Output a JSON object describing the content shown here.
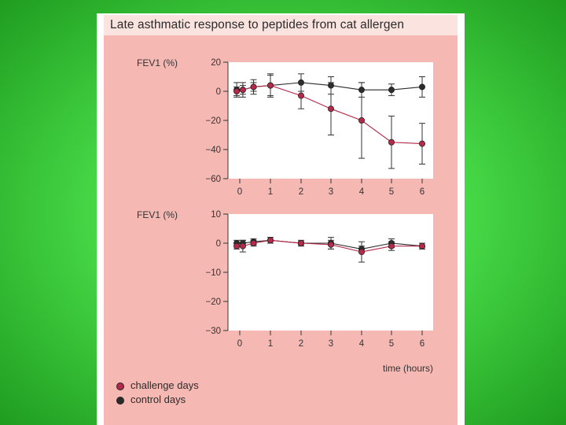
{
  "title": "Late asthmatic response to peptides from cat allergen",
  "legend": {
    "challenge_label": "challenge days",
    "control_label": "control days"
  },
  "colors": {
    "challenge": "#b5294a",
    "control": "#2b2b2b",
    "panel": "#f6b8b3",
    "plot_bg": "#ffffff"
  },
  "chart_data": [
    {
      "type": "line",
      "ylabel": "FEV1 (%)",
      "xlabel": "",
      "ylim": [
        -60,
        20
      ],
      "yticks": [
        20,
        0,
        -20,
        -40,
        -60
      ],
      "xlim": [
        -0.5,
        6.4
      ],
      "xticks": [
        0,
        1,
        2,
        3,
        4,
        5,
        6
      ],
      "series": [
        {
          "name": "control days",
          "x": [
            -0.1,
            0.1,
            0.45,
            1,
            2,
            3,
            4,
            5,
            6
          ],
          "y": [
            1,
            1,
            3,
            4,
            6,
            4,
            1,
            1,
            3
          ],
          "err": [
            5,
            5,
            5,
            7,
            6,
            6,
            5,
            4,
            7
          ]
        },
        {
          "name": "challenge days",
          "x": [
            -0.1,
            0.1,
            0.45,
            1,
            2,
            3,
            4,
            5,
            6
          ],
          "y": [
            0,
            1,
            3,
            4,
            -3,
            -12,
            -20,
            -35,
            -36
          ],
          "err": [
            3,
            3,
            3,
            8,
            9,
            18,
            26,
            18,
            14
          ]
        }
      ]
    },
    {
      "type": "line",
      "ylabel": "FEV1 (%)",
      "xlabel": "time (hours)",
      "ylim": [
        -30,
        10
      ],
      "yticks": [
        10,
        0,
        -10,
        -20,
        -30
      ],
      "xlim": [
        -0.5,
        6.4
      ],
      "xticks": [
        0,
        1,
        2,
        3,
        4,
        5,
        6
      ],
      "series": [
        {
          "name": "control days",
          "x": [
            -0.1,
            0.1,
            0.45,
            1,
            2,
            3,
            4,
            5,
            6
          ],
          "y": [
            0,
            0,
            0.5,
            1,
            0,
            0,
            -2,
            0,
            -1
          ],
          "err": [
            1,
            1,
            1,
            1,
            1,
            2,
            1,
            1.5,
            1
          ]
        },
        {
          "name": "challenge days",
          "x": [
            -0.1,
            0.1,
            0.45,
            1,
            2,
            3,
            4,
            5,
            6
          ],
          "y": [
            -1,
            -1,
            0,
            1,
            0,
            -0.5,
            -3,
            -1,
            -1
          ],
          "err": [
            1,
            2,
            1,
            1,
            0.5,
            1.5,
            3.5,
            1.5,
            1
          ]
        }
      ]
    }
  ]
}
